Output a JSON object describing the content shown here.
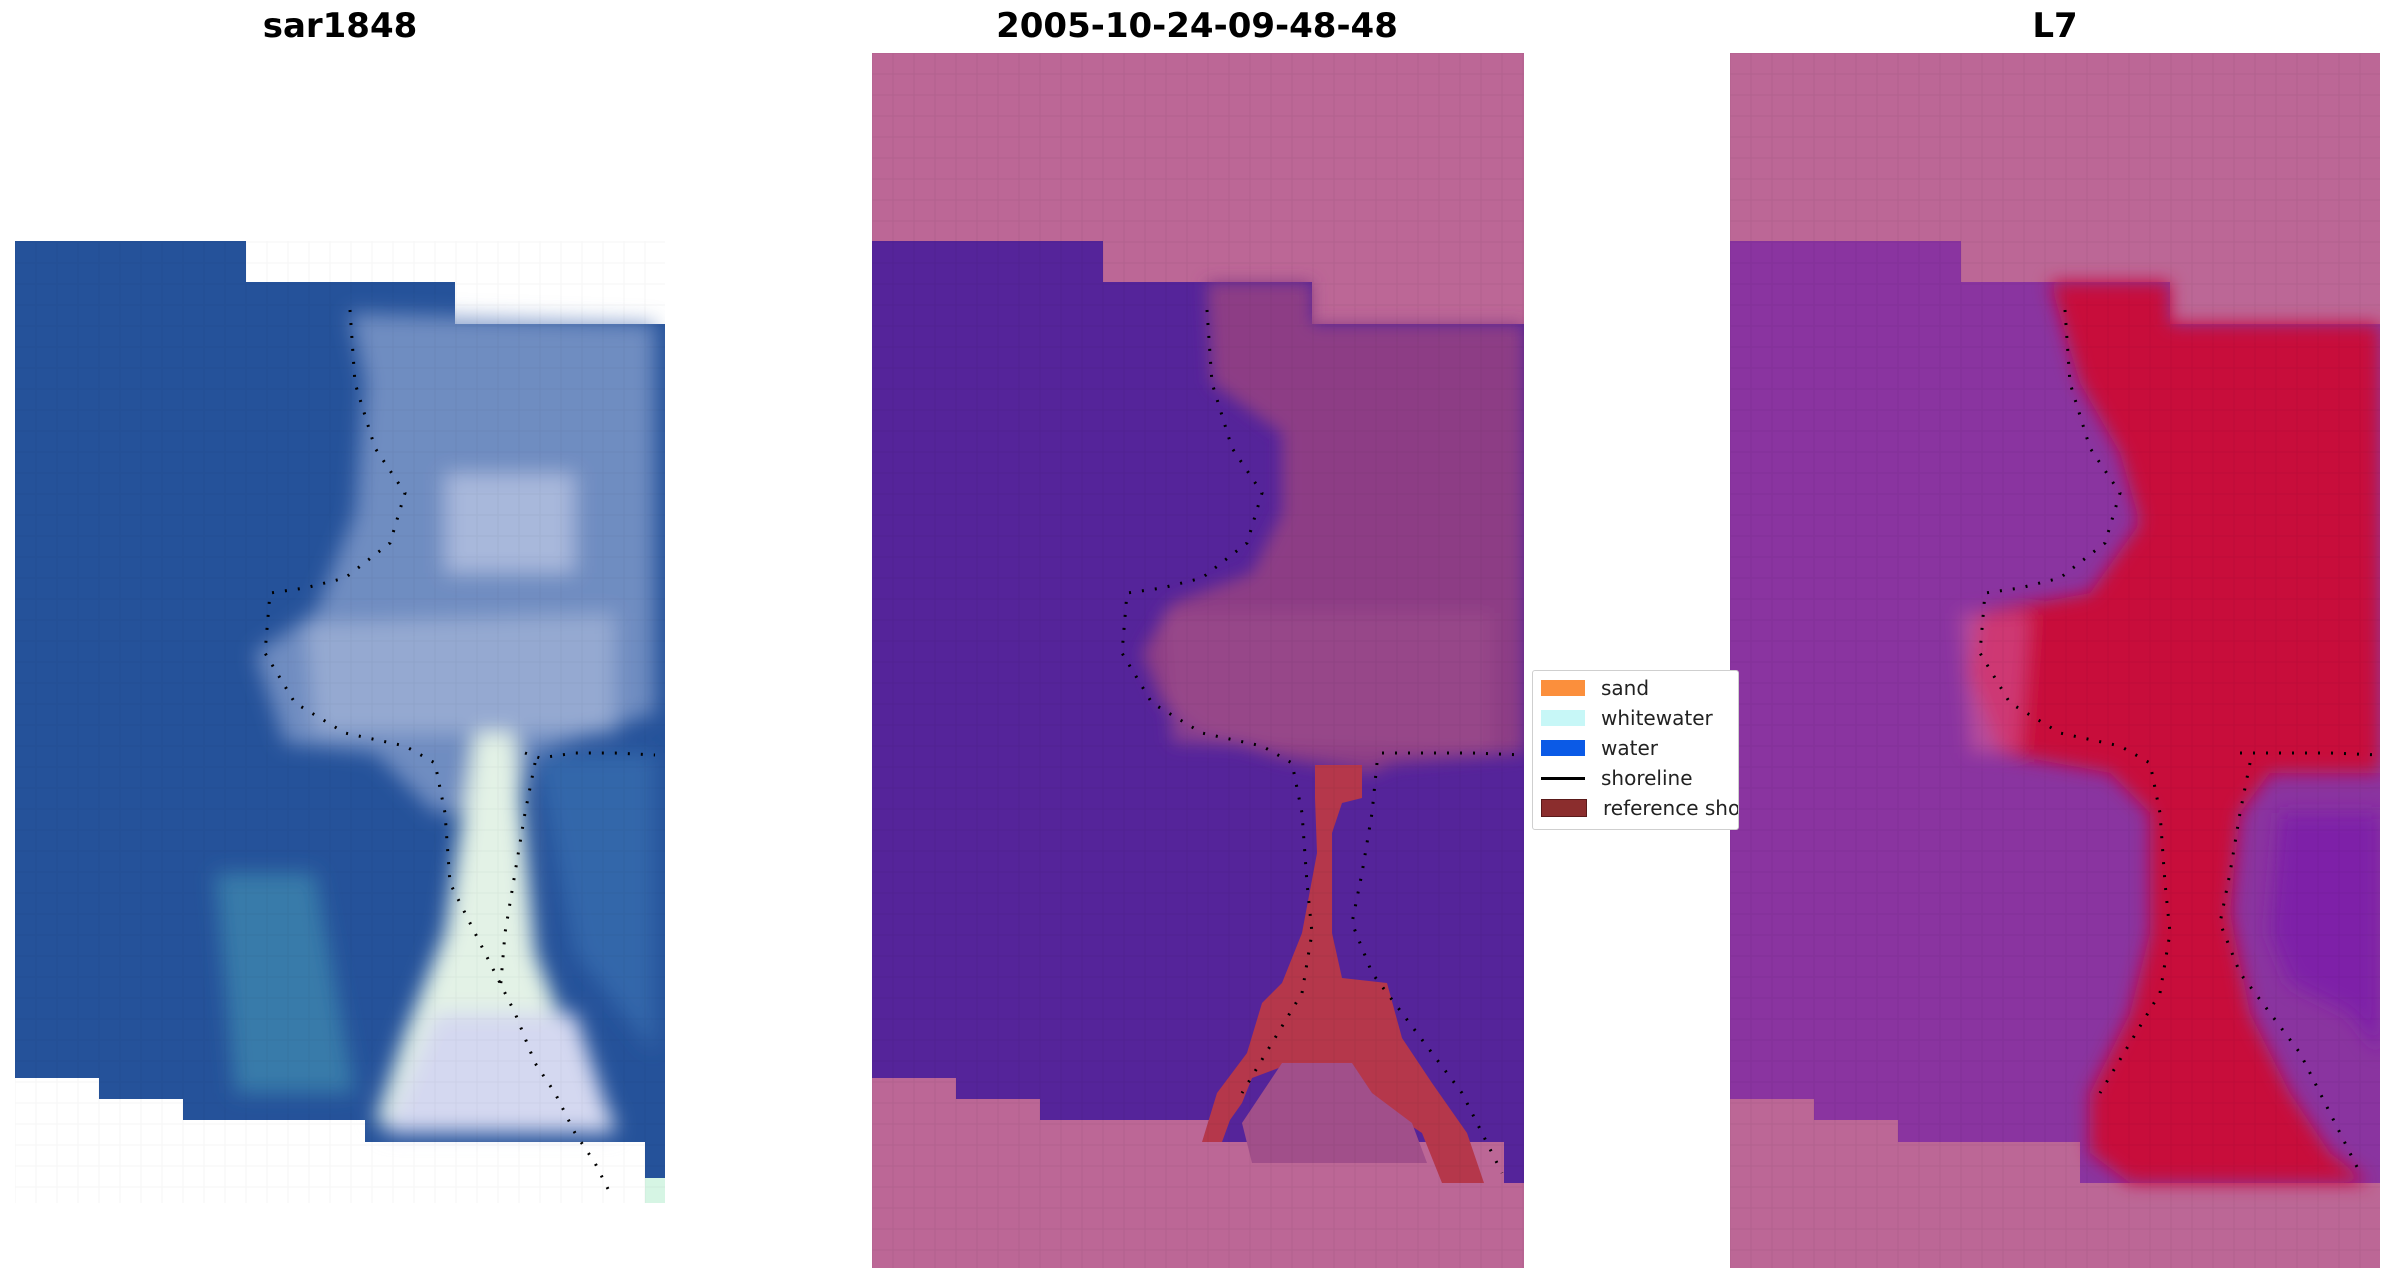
{
  "panels": [
    {
      "title": "sar1848"
    },
    {
      "title": "2005-10-24-09-48-48"
    },
    {
      "title": "L7"
    }
  ],
  "legend": {
    "items": [
      {
        "label": "sand",
        "color": "#fb8f3c",
        "kind": "patch"
      },
      {
        "label": "whitewater",
        "color": "#c7f7f7",
        "kind": "patch"
      },
      {
        "label": "water",
        "color": "#0b5ae6",
        "kind": "patch"
      },
      {
        "label": "shoreline",
        "color": "#000000",
        "kind": "line"
      },
      {
        "label": "reference shoreline",
        "color": "#8b2d2d",
        "kind": "patch"
      }
    ]
  },
  "colors": {
    "nodata": "#bc6796",
    "water_class": "#55249a",
    "sand_class": "#b5374b",
    "rgb_water": "#24529a",
    "rgb_foam": "#eef3ff",
    "index_water": "#8a34a0",
    "index_land": "#c8083a"
  }
}
